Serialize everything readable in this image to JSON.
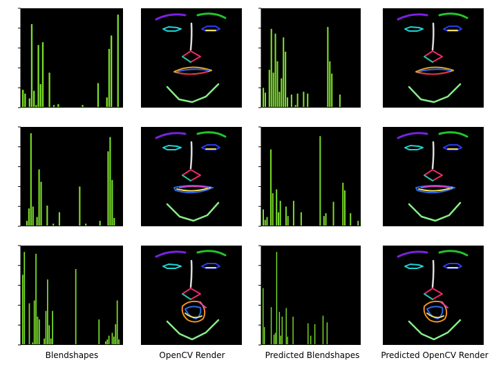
{
  "column_labels": [
    "Blendshapes",
    "OpenCV Render",
    "Predicted Blendshapes",
    "Predicted OpenCV Render"
  ],
  "colors": {
    "panel_bg": "#000000",
    "bar": "#7be02a",
    "axis": "#000000"
  },
  "chart_data": [
    {
      "type": "bar",
      "row": 0,
      "column": 0,
      "values": [
        0.18,
        0.14,
        0.0,
        0.09,
        0.87,
        0.17,
        0.02,
        0.65,
        0.24,
        0.68,
        0.0,
        0.0,
        0.36,
        0.0,
        0.02,
        0.0,
        0.03,
        0.0,
        0.0,
        0.0,
        0.0,
        0.0,
        0.0,
        0.0,
        0.0,
        0.0,
        0.0,
        0.02,
        0.0,
        0.0,
        0.0,
        0.0,
        0.0,
        0.0,
        0.25,
        0.0,
        0.0,
        0.0,
        0.1,
        0.61,
        0.75,
        0.0,
        0.0,
        0.97,
        0.0
      ]
    },
    {
      "type": "bar",
      "row": 0,
      "column": 2,
      "values": [
        0.2,
        0.15,
        0.0,
        0.39,
        0.82,
        0.36,
        0.77,
        0.48,
        0.16,
        0.3,
        0.73,
        0.58,
        0.1,
        0.0,
        0.13,
        0.0,
        0.02,
        0.14,
        0.0,
        0.0,
        0.16,
        0.0,
        0.14,
        0.0,
        0.0,
        0.0,
        0.0,
        0.0,
        0.0,
        0.0,
        0.0,
        0.0,
        0.84,
        0.48,
        0.35,
        0.0,
        0.0,
        0.0,
        0.13,
        0.0,
        0.0,
        0.0,
        0.0,
        0.0,
        0.0,
        0.0,
        0.0,
        0.0
      ]
    },
    {
      "type": "bar",
      "row": 1,
      "column": 0,
      "values": [
        0.0,
        0.0,
        0.05,
        0.18,
        0.97,
        0.2,
        0.0,
        0.09,
        0.59,
        0.46,
        0.0,
        0.0,
        0.21,
        0.0,
        0.0,
        0.02,
        0.0,
        0.0,
        0.14,
        0.0,
        0.0,
        0.0,
        0.0,
        0.0,
        0.0,
        0.0,
        0.0,
        0.0,
        0.41,
        0.0,
        0.0,
        0.02,
        0.0,
        0.0,
        0.0,
        0.0,
        0.0,
        0.0,
        0.05,
        0.0,
        0.0,
        0.0,
        0.78,
        0.93,
        0.48,
        0.08,
        0.0,
        0.0,
        0.0
      ]
    },
    {
      "type": "bar",
      "row": 1,
      "column": 2,
      "values": [
        0.17,
        0.06,
        0.09,
        0.0,
        0.8,
        0.34,
        0.0,
        0.38,
        0.14,
        0.26,
        0.0,
        0.0,
        0.2,
        0.1,
        0.0,
        0.0,
        0.26,
        0.0,
        0.0,
        0.0,
        0.14,
        0.0,
        0.0,
        0.0,
        0.0,
        0.0,
        0.0,
        0.0,
        0.0,
        0.0,
        0.94,
        0.0,
        0.1,
        0.13,
        0.0,
        0.0,
        0.0,
        0.25,
        0.0,
        0.0,
        0.0,
        0.0,
        0.45,
        0.37,
        0.0,
        0.0,
        0.13,
        0.0,
        0.0,
        0.0,
        0.05
      ]
    },
    {
      "type": "bar",
      "row": 2,
      "column": 0,
      "values": [
        0.73,
        0.97,
        0.0,
        0.0,
        0.43,
        0.0,
        0.02,
        0.46,
        0.95,
        0.29,
        0.26,
        0.0,
        0.0,
        0.06,
        0.35,
        0.68,
        0.2,
        0.06,
        0.35,
        0.0,
        0.0,
        0.0,
        0.0,
        0.0,
        0.0,
        0.0,
        0.0,
        0.0,
        0.0,
        0.0,
        0.0,
        0.0,
        0.79,
        0.0,
        0.0,
        0.0,
        0.0,
        0.0,
        0.0,
        0.0,
        0.0,
        0.0,
        0.0,
        0.0,
        0.0,
        0.0,
        0.26,
        0.0,
        0.0,
        0.0,
        0.03,
        0.05,
        0.09,
        0.0,
        0.12,
        0.08,
        0.21,
        0.46,
        0.05,
        0.0
      ]
    },
    {
      "type": "bar",
      "row": 2,
      "column": 2,
      "values": [
        0.59,
        0.18,
        0.0,
        0.0,
        0.0,
        0.0,
        0.39,
        0.0,
        0.1,
        0.12,
        0.97,
        0.0,
        0.34,
        0.09,
        0.29,
        0.0,
        0.0,
        0.38,
        0.08,
        0.0,
        0.0,
        0.0,
        0.29,
        0.0,
        0.0,
        0.0,
        0.0,
        0.0,
        0.0,
        0.0,
        0.0,
        0.0,
        0.0,
        0.22,
        0.0,
        0.09,
        0.0,
        0.0,
        0.21,
        0.0,
        0.0,
        0.0,
        0.0,
        0.0,
        0.3,
        0.0,
        0.0,
        0.23,
        0.0,
        0.0,
        0.0,
        0.0,
        0.0,
        0.0,
        0.0,
        0.0,
        0.0,
        0.0,
        0.0,
        0.0,
        0.0,
        0.0,
        0.0,
        0.0,
        0.0,
        0.0,
        0.0,
        0.0,
        0.0,
        0.0,
        0.0
      ]
    },
    {
      "type": "bar",
      "row": 0,
      "column": 1,
      "values": []
    }
  ],
  "faces": [
    {
      "row": 0,
      "column": 1,
      "mouth": "open-slight"
    },
    {
      "row": 0,
      "column": 3,
      "mouth": "open-slight"
    },
    {
      "row": 1,
      "column": 1,
      "mouth": "smile"
    },
    {
      "row": 1,
      "column": 3,
      "mouth": "smile"
    },
    {
      "row": 2,
      "column": 1,
      "mouth": "open-round"
    },
    {
      "row": 2,
      "column": 3,
      "mouth": "open-round"
    }
  ]
}
